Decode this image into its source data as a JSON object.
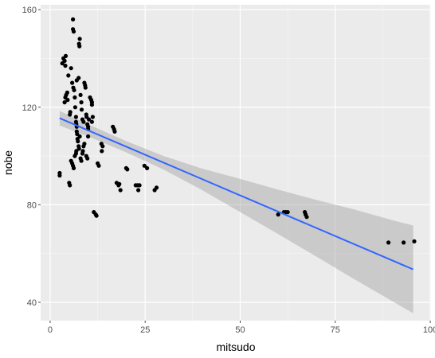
{
  "chart_data": {
    "type": "scatter",
    "title": "",
    "xlabel": "mitsudo",
    "ylabel": "nobe",
    "xlim": [
      -2.5,
      100.2
    ],
    "ylim": [
      32.5,
      162
    ],
    "x_ticks": [
      0,
      25,
      50,
      75,
      100
    ],
    "y_ticks": [
      40,
      80,
      120,
      160
    ],
    "x_tick_labels": [
      "0",
      "25",
      "50",
      "75",
      "100"
    ],
    "y_tick_labels": [
      "40",
      "80",
      "120",
      "160"
    ],
    "grid": true,
    "panel_background": "#ebebeb",
    "point_color": "#000000",
    "smooth": {
      "method": "lm",
      "color": "#3366ff",
      "band_color": "#999999",
      "x": [
        2.5,
        10,
        20,
        30,
        40,
        50,
        60,
        70,
        80,
        90,
        95.5
      ],
      "fit": [
        115.5,
        110.5,
        103.8,
        97.1,
        90.4,
        83.8,
        77.1,
        70.4,
        63.8,
        57.1,
        53.5
      ],
      "lower": [
        112.5,
        108.0,
        101.5,
        94.3,
        86.0,
        77.0,
        68.0,
        58.8,
        49.5,
        40.5,
        35.5
      ],
      "upper": [
        118.5,
        113.0,
        106.1,
        99.9,
        94.8,
        90.6,
        86.2,
        82.0,
        78.1,
        73.7,
        71.5
      ]
    },
    "points": [
      [
        2.5,
        93
      ],
      [
        2.5,
        92
      ],
      [
        3.2,
        138
      ],
      [
        3.5,
        140
      ],
      [
        3.8,
        139
      ],
      [
        4.0,
        137
      ],
      [
        4.1,
        141
      ],
      [
        4.2,
        125
      ],
      [
        3.8,
        122
      ],
      [
        4.0,
        124
      ],
      [
        4.5,
        126
      ],
      [
        4.6,
        123
      ],
      [
        4.8,
        133
      ],
      [
        5.2,
        117
      ],
      [
        5.3,
        118
      ],
      [
        5.0,
        89
      ],
      [
        5.2,
        88
      ],
      [
        5.5,
        136
      ],
      [
        5.8,
        130
      ],
      [
        6.0,
        156
      ],
      [
        6.0,
        152
      ],
      [
        6.2,
        151
      ],
      [
        6.1,
        128
      ],
      [
        6.3,
        127
      ],
      [
        6.5,
        124
      ],
      [
        6.6,
        120
      ],
      [
        6.8,
        116
      ],
      [
        6.8,
        114
      ],
      [
        6.9,
        113
      ],
      [
        7.0,
        112
      ],
      [
        5.5,
        98
      ],
      [
        5.8,
        97
      ],
      [
        6.0,
        96
      ],
      [
        6.2,
        95
      ],
      [
        6.5,
        100
      ],
      [
        6.8,
        101
      ],
      [
        6.9,
        102
      ],
      [
        7.0,
        110
      ],
      [
        7.1,
        109
      ],
      [
        7.2,
        107
      ],
      [
        7.3,
        106
      ],
      [
        7.5,
        104
      ],
      [
        7.6,
        103
      ],
      [
        7.8,
        108
      ],
      [
        7.0,
        131
      ],
      [
        7.5,
        132
      ],
      [
        7.6,
        146
      ],
      [
        7.8,
        148
      ],
      [
        7.7,
        145
      ],
      [
        8.0,
        125
      ],
      [
        8.2,
        122
      ],
      [
        8.3,
        119
      ],
      [
        8.5,
        115
      ],
      [
        8.8,
        114
      ],
      [
        8.0,
        99
      ],
      [
        8.2,
        98
      ],
      [
        8.5,
        101
      ],
      [
        8.6,
        102
      ],
      [
        8.8,
        104
      ],
      [
        9.0,
        105
      ],
      [
        9.0,
        130
      ],
      [
        9.2,
        129
      ],
      [
        9.3,
        128
      ],
      [
        9.5,
        117
      ],
      [
        9.6,
        116
      ],
      [
        9.8,
        113
      ],
      [
        10.0,
        112
      ],
      [
        10.0,
        111
      ],
      [
        10.2,
        115
      ],
      [
        9.5,
        100
      ],
      [
        9.8,
        99
      ],
      [
        10.0,
        108
      ],
      [
        10.5,
        124
      ],
      [
        10.8,
        123
      ],
      [
        11.0,
        122
      ],
      [
        11.0,
        121
      ],
      [
        11.2,
        116
      ],
      [
        11.0,
        114
      ],
      [
        11.5,
        77
      ],
      [
        12.0,
        76
      ],
      [
        12.2,
        75.5
      ],
      [
        12.5,
        97
      ],
      [
        12.8,
        96
      ],
      [
        13.5,
        105
      ],
      [
        13.8,
        104
      ],
      [
        13.6,
        102
      ],
      [
        16.5,
        112
      ],
      [
        16.8,
        111
      ],
      [
        17.0,
        110
      ],
      [
        17.5,
        89
      ],
      [
        18.0,
        88
      ],
      [
        18.2,
        88.5
      ],
      [
        18.5,
        86
      ],
      [
        20.0,
        95
      ],
      [
        20.3,
        94.5
      ],
      [
        22.5,
        88
      ],
      [
        23.0,
        88
      ],
      [
        23.5,
        88
      ],
      [
        23.2,
        86
      ],
      [
        24.8,
        96
      ],
      [
        25.5,
        95
      ],
      [
        27.5,
        86
      ],
      [
        28.0,
        87
      ],
      [
        60.0,
        76
      ],
      [
        61.5,
        77
      ],
      [
        62.0,
        77
      ],
      [
        62.5,
        77
      ],
      [
        67.0,
        77
      ],
      [
        67.2,
        76
      ],
      [
        67.5,
        75
      ],
      [
        89.0,
        64.5
      ],
      [
        93.0,
        64.5
      ],
      [
        95.8,
        65
      ]
    ]
  }
}
